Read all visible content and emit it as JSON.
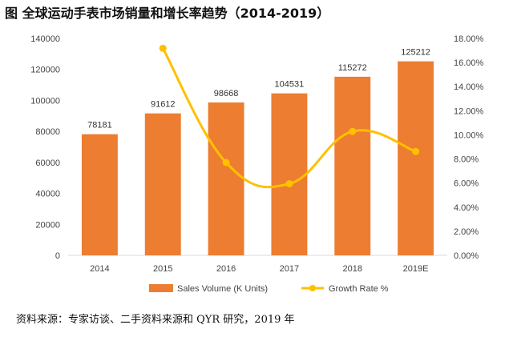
{
  "header": {
    "title": "图  全球运动手表市场销量和增长率趋势（2014-2019）"
  },
  "footer": {
    "source": "资料来源：专家访谈、二手资料来源和 QYR 研究，2019 年"
  },
  "chart_data": {
    "type": "bar",
    "title": "图  全球运动手表市场销量和增长率趋势（2014-2019）",
    "categories": [
      "2014",
      "2015",
      "2016",
      "2017",
      "2018",
      "2019E"
    ],
    "series": [
      {
        "name": "Sales Volume (K Units)",
        "type": "bar",
        "axis": "left",
        "values": [
          78181,
          91612,
          98668,
          104531,
          115272,
          125212
        ],
        "color": "#ED7D31",
        "data_labels": [
          "78181",
          "91612",
          "98668",
          "104531",
          "115272",
          "125212"
        ]
      },
      {
        "name": "Growth Rate %",
        "type": "line",
        "axis": "right",
        "smooth": true,
        "values": [
          null,
          17.18,
          7.7,
          5.94,
          10.28,
          8.62
        ],
        "color": "#FFC000"
      }
    ],
    "left_axis": {
      "ylim": [
        0,
        140000
      ],
      "ticks": [
        "0",
        "20000",
        "40000",
        "60000",
        "80000",
        "100000",
        "120000",
        "140000"
      ]
    },
    "right_axis": {
      "ylim": [
        0,
        18
      ],
      "ticks": [
        "0.00%",
        "2.00%",
        "4.00%",
        "6.00%",
        "8.00%",
        "10.00%",
        "12.00%",
        "14.00%",
        "16.00%",
        "18.00%"
      ]
    },
    "grid": false,
    "legend": {
      "position": "bottom"
    }
  }
}
